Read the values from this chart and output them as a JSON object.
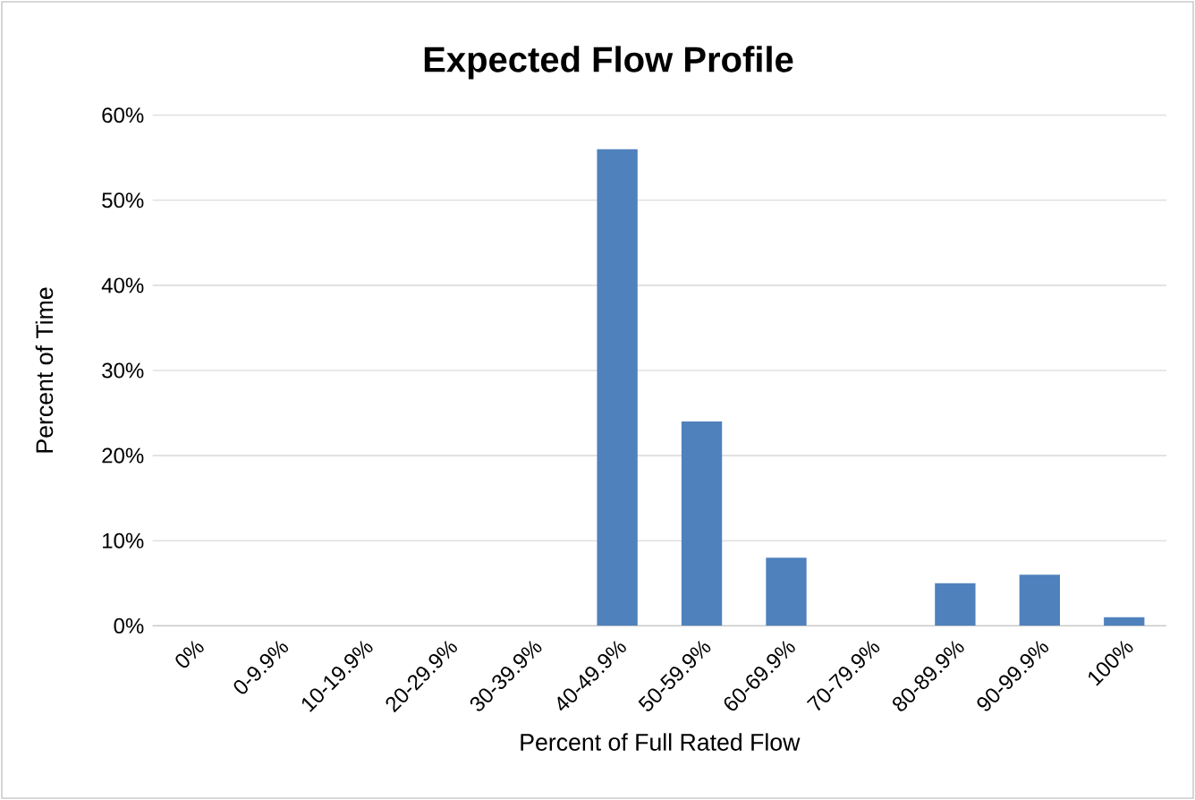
{
  "chart_data": {
    "type": "bar",
    "title": "Expected Flow Profile",
    "xlabel": "Percent of Full Rated Flow",
    "ylabel": "Percent of Time",
    "categories": [
      "0%",
      "0-9.9%",
      "10-19.9%",
      "20-29.9%",
      "30-39.9%",
      "40-49.9%",
      "50-59.9%",
      "60-69.9%",
      "70-79.9%",
      "80-89.9%",
      "90-99.9%",
      "100%"
    ],
    "values": [
      0,
      0,
      0,
      0,
      0,
      56,
      24,
      8,
      0,
      5,
      6,
      1
    ],
    "color": "#4f81bd",
    "ylim": [
      0,
      60
    ],
    "yticks": [
      {
        "value": 0,
        "label": "0%"
      },
      {
        "value": 10,
        "label": "10%"
      },
      {
        "value": 20,
        "label": "20%"
      },
      {
        "value": 30,
        "label": "30%"
      },
      {
        "value": 40,
        "label": "40%"
      },
      {
        "value": 50,
        "label": "50%"
      },
      {
        "value": 60,
        "label": "60%"
      }
    ],
    "grid": "y"
  }
}
